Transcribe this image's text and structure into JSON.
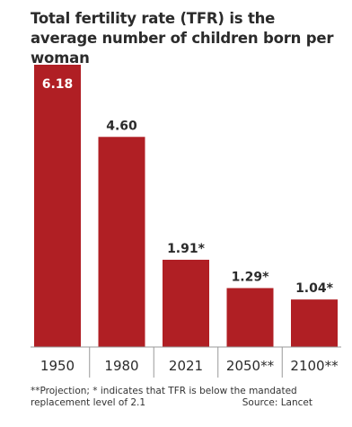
{
  "title": "Total fertility rate (TFR) is the average number of children born per woman",
  "note": "**Projection; * indicates that TFR is below the mandated replacement level of 2.1",
  "source": "Source: Lancet",
  "colors": {
    "bar": "#b01f24",
    "text": "#2b2b2b",
    "label_inside": "#ffffff"
  },
  "chart_data": {
    "type": "bar",
    "categories": [
      "1950",
      "1980",
      "2021",
      "2050**",
      "2100**"
    ],
    "values": [
      6.18,
      4.6,
      1.91,
      1.29,
      1.04
    ],
    "labels": [
      "6.18",
      "4.60",
      "1.91*",
      "1.29*",
      "1.04*"
    ],
    "title": "Total fertility rate (TFR) is the average number of children born per woman",
    "xlabel": "",
    "ylabel": "",
    "ylim": [
      0,
      6.18
    ],
    "grid": false,
    "legend": "none"
  }
}
